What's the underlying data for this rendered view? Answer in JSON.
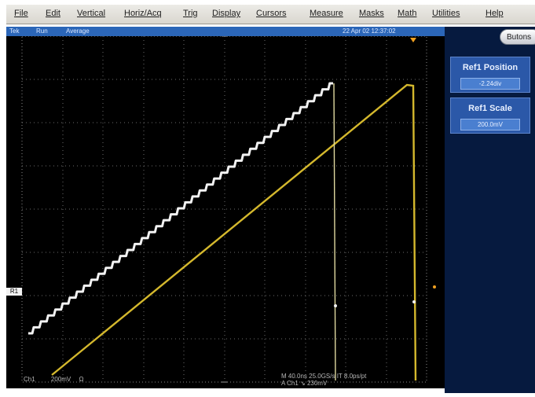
{
  "menu": [
    "File",
    "Edit",
    "Vertical",
    "Horiz/Acq",
    "Trig",
    "Display",
    "Cursors",
    "Measure",
    "Masks",
    "Math",
    "Utilities",
    "Help"
  ],
  "status": {
    "left": "Tek",
    "mode": "Run",
    "acq": "Average",
    "timestamp": "22 Apr 02 12:37:02"
  },
  "panel": {
    "buttons_label": "Butons",
    "ref_position": {
      "title": "Ref1 Position",
      "value": "-2.24div"
    },
    "ref_scale": {
      "title": "Ref1 Scale",
      "value": "200.0mV"
    }
  },
  "screen": {
    "ch_marker": "R1",
    "bottom_left": {
      "channel": "Ch1",
      "scale": "200mV",
      "ohm": "Ω"
    },
    "bottom_right": {
      "line1": "M 40.0ns 25.0GS/s IT 8.0ps/pt",
      "line2": "A Ch1 ↘ 230mV"
    }
  },
  "colors": {
    "trace_ref": "#f2f2f2",
    "trace_ch1": "#d4b82d",
    "accent": "#f0a020"
  }
}
